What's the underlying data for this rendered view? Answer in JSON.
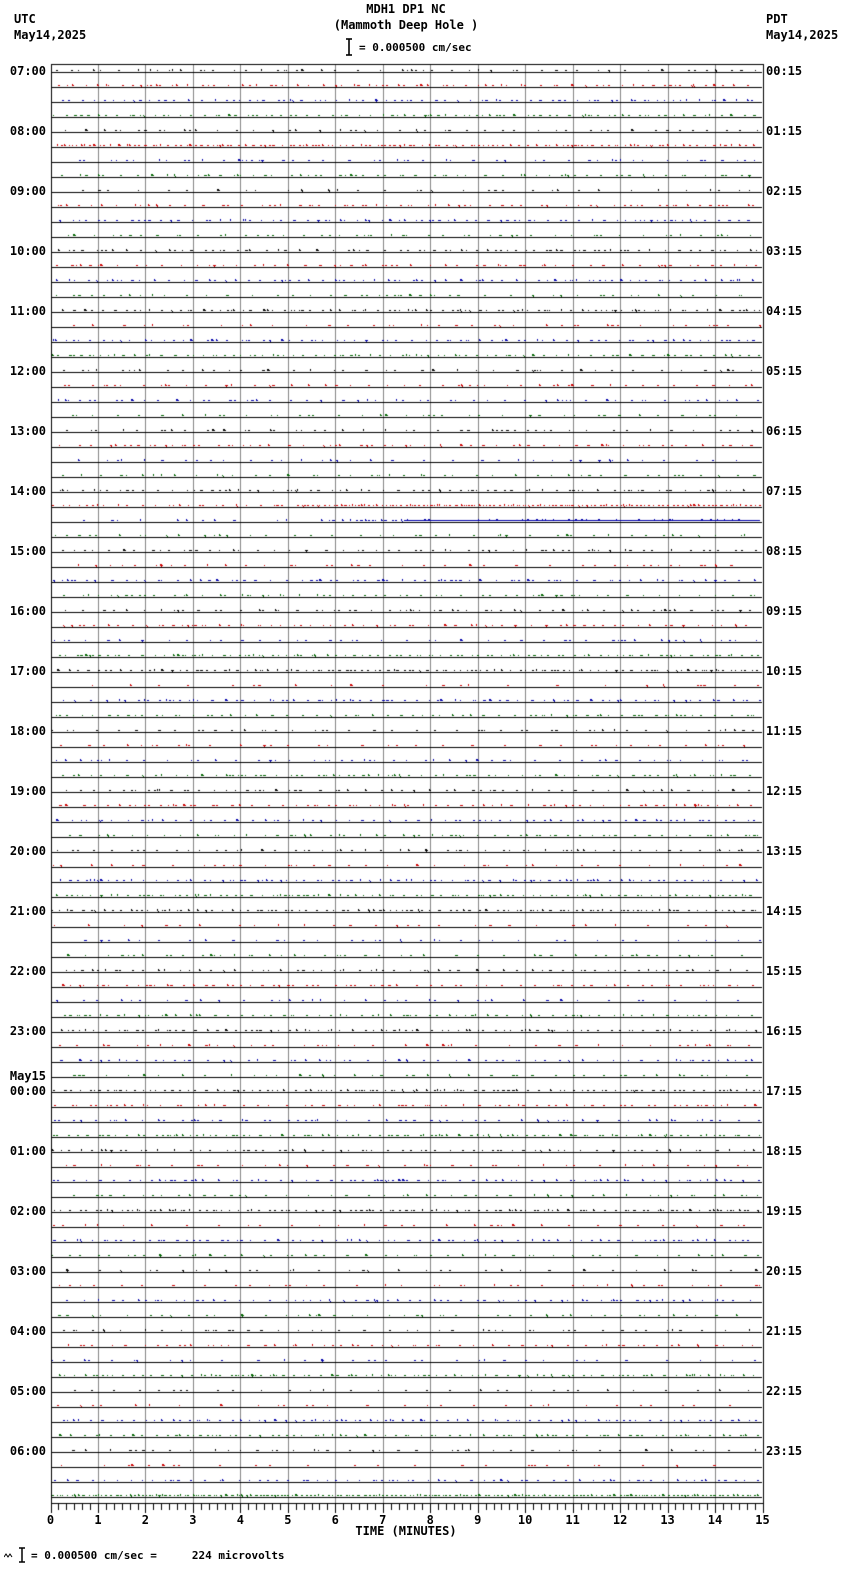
{
  "title": {
    "line1": "MDH1 DP1 NC",
    "line2": "(Mammoth Deep Hole )",
    "scale_label": "= 0.000500 cm/sec"
  },
  "header_left": {
    "timezone": "UTC",
    "date": "May14,2025"
  },
  "header_right": {
    "timezone": "PDT",
    "date": "May14,2025"
  },
  "footer": {
    "scale_equation": "= 0.000500 cm/sec =",
    "microvolts": "224 microvolts"
  },
  "x_axis": {
    "label": "TIME (MINUTES)",
    "tick_labels": [
      "0",
      "1",
      "2",
      "3",
      "4",
      "5",
      "6",
      "7",
      "8",
      "9",
      "10",
      "11",
      "12",
      "13",
      "14",
      "15"
    ],
    "minutes_span": 15,
    "minor_ticks_per_minute": 6
  },
  "left_time_labels": [
    "07:00",
    "08:00",
    "09:00",
    "10:00",
    "11:00",
    "12:00",
    "13:00",
    "14:00",
    "15:00",
    "16:00",
    "17:00",
    "18:00",
    "19:00",
    "20:00",
    "21:00",
    "22:00",
    "23:00",
    "00:00",
    "01:00",
    "02:00",
    "03:00",
    "04:00",
    "05:00",
    "06:00"
  ],
  "date_rollover_label": "May15",
  "right_time_labels": [
    "00:15",
    "01:15",
    "02:15",
    "03:15",
    "04:15",
    "05:15",
    "06:15",
    "07:15",
    "08:15",
    "09:15",
    "10:15",
    "11:15",
    "12:15",
    "13:15",
    "14:15",
    "15:15",
    "16:15",
    "17:15",
    "18:15",
    "19:15",
    "20:15",
    "21:15",
    "22:15",
    "23:15"
  ],
  "chart_data": {
    "type": "line",
    "subtype": "helicorder-seismogram",
    "station": "MDH1",
    "channel": "DP1",
    "network": "NC",
    "station_name": "Mammoth Deep Hole",
    "scale_cm_per_sec": 0.0005,
    "scale_microvolts": 224,
    "x_range_minutes": [
      0,
      15
    ],
    "rows_per_hour": 4,
    "hour_blocks": 24,
    "trace_colors": [
      "#000000",
      "#cc0000",
      "#0000aa",
      "#006600"
    ],
    "start_utc": "07:00 May14,2025",
    "end_utc": "07:00 May15,2025",
    "grid": true,
    "events": [
      {
        "utc": "08:00",
        "channel_index": 1,
        "from_minute": 0,
        "to_minute": 15,
        "intensity": "medium",
        "note": "elevated noise"
      },
      {
        "utc": "14:00",
        "channel_index": 1,
        "from_minute": 5,
        "to_minute": 15,
        "intensity": "high",
        "note": "dense signal"
      },
      {
        "utc": "14:00",
        "channel_index": 2,
        "from_minute": 5,
        "to_minute": 7.5,
        "intensity": "medium",
        "note": "signal onset"
      },
      {
        "utc": "14:00",
        "channel_index": 2,
        "from_minute": 7.5,
        "to_minute": 15,
        "intensity": "solid",
        "note": "continuous elevated trace"
      },
      {
        "utc": "06:00",
        "channel_index": 3,
        "from_minute": 0,
        "to_minute": 15,
        "intensity": "high",
        "note": "elevated noise"
      }
    ]
  },
  "layout_colors": {
    "background": "#ffffff",
    "border": "#000000",
    "grid": "#848484",
    "black_trace": "#000000",
    "red_trace": "#cc0000",
    "blue_trace": "#0000aa",
    "green_trace": "#006600"
  }
}
